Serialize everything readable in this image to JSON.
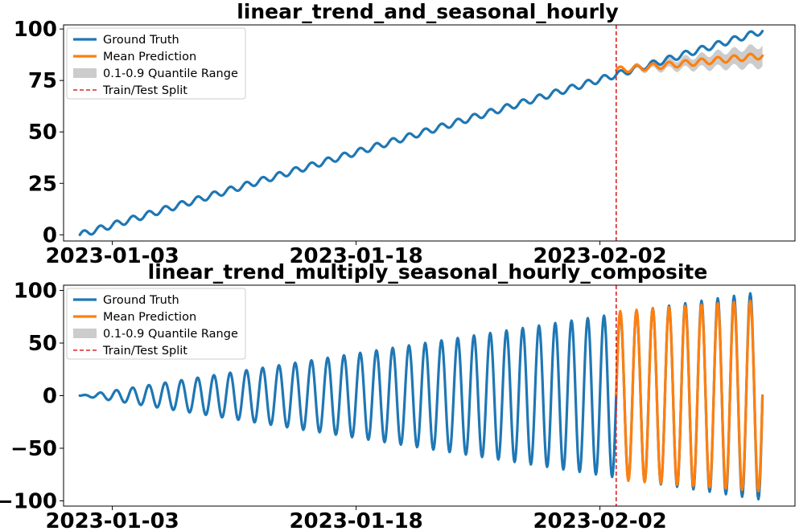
{
  "chart_data": [
    {
      "type": "line",
      "title": "linear_trend_and_seasonal_hourly",
      "xlabel": "",
      "ylabel": "",
      "x_ticks": [
        "2023-01-03",
        "2023-01-18",
        "2023-02-02"
      ],
      "x_range": [
        "2022-12-31T00:00",
        "2023-02-14T00:00"
      ],
      "ylim": [
        -3,
        102
      ],
      "y_ticks": [
        0,
        25,
        50,
        75,
        100
      ],
      "grid": false,
      "legend_position": "top-left",
      "legend": [
        "Ground Truth",
        "Mean Prediction",
        "0.1-0.9 Quantile Range",
        "Train/Test Split"
      ],
      "train_test_split": "2023-02-03T00:00",
      "series": [
        {
          "name": "Ground Truth",
          "color": "#1f77b4",
          "style": "solid",
          "x_start": "2023-01-01T00:00",
          "x_end": "2023-02-12T00:00",
          "trend_start": 0,
          "trend_end": 99,
          "seasonal_amplitude": 1.5,
          "seasonal_period_hours": 24
        },
        {
          "name": "Mean Prediction",
          "color": "#ff7f0e",
          "style": "solid",
          "x_start": "2023-02-03T00:00",
          "x_end": "2023-02-12T00:00",
          "trend_start": 80,
          "trend_end": 87,
          "seasonal_amplitude": 1.5,
          "seasonal_period_hours": 24
        }
      ],
      "band": {
        "name": "0.1-0.9 Quantile Range",
        "color": "#cccccc",
        "x_start": "2023-02-03T00:00",
        "x_end": "2023-02-12T00:00",
        "half_width_start": 0.5,
        "half_width_end": 5
      }
    },
    {
      "type": "line",
      "title": "linear_trend_multiply_seasonal_hourly_composite",
      "xlabel": "",
      "ylabel": "",
      "x_ticks": [
        "2023-01-03",
        "2023-01-18",
        "2023-02-02"
      ],
      "x_range": [
        "2022-12-31T00:00",
        "2023-02-14T00:00"
      ],
      "ylim": [
        -105,
        105
      ],
      "y_ticks": [
        -100,
        -50,
        0,
        50,
        100
      ],
      "grid": false,
      "legend_position": "top-left",
      "legend": [
        "Ground Truth",
        "Mean Prediction",
        "0.1-0.9 Quantile Range",
        "Train/Test Split"
      ],
      "train_test_split": "2023-02-03T00:00",
      "series": [
        {
          "name": "Ground Truth",
          "color": "#1f77b4",
          "style": "solid",
          "x_start": "2023-01-01T00:00",
          "x_end": "2023-02-12T00:00",
          "amplitude_start": 0,
          "amplitude_end": 99,
          "seasonal_period_hours": 24
        },
        {
          "name": "Mean Prediction",
          "color": "#ff7f0e",
          "style": "solid",
          "x_start": "2023-02-03T00:00",
          "x_end": "2023-02-12T00:00",
          "amplitude_start": 80,
          "amplitude_end": 91,
          "seasonal_period_hours": 24
        }
      ]
    }
  ],
  "colors": {
    "ground_truth": "#1f77b4",
    "prediction": "#ff7f0e",
    "quantile_band": "#cccccc",
    "split_line": "#d62728"
  }
}
